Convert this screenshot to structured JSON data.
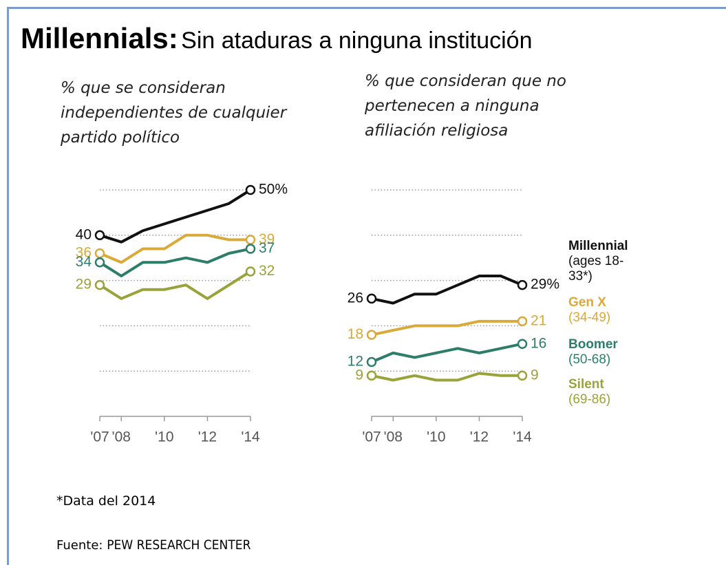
{
  "header": {
    "title": "Millennials:",
    "subtitle": "Sin ataduras a ninguna institución"
  },
  "chart_data": [
    {
      "type": "line",
      "subtitle": "% que se consideran independientes de cualquier partido político",
      "x": [
        2007,
        2008,
        2009,
        2010,
        2011,
        2012,
        2013,
        2014
      ],
      "xlim": [
        2007,
        2014
      ],
      "xticks": [
        {
          "value": 2007,
          "label": "'07"
        },
        {
          "value": 2008,
          "label": "'08"
        },
        {
          "value": 2010,
          "label": "'10"
        },
        {
          "value": 2012,
          "label": "'12"
        },
        {
          "value": 2014,
          "label": "'14"
        }
      ],
      "ylim": [
        0,
        50
      ],
      "yticks": [
        10,
        20,
        30,
        40,
        50
      ],
      "grid": true,
      "series": [
        {
          "name": "Millennial",
          "color": "#111111",
          "values": [
            40,
            38.5,
            41,
            42.5,
            44,
            45.5,
            47,
            50
          ],
          "value_labels": [
            "40",
            null,
            null,
            null,
            null,
            null,
            null,
            "50%"
          ]
        },
        {
          "name": "Gen X",
          "color": "#d9a93a",
          "values": [
            36,
            34,
            37,
            37,
            40,
            40,
            39,
            39
          ],
          "value_labels": [
            "36",
            null,
            null,
            null,
            null,
            null,
            null,
            "39"
          ]
        },
        {
          "name": "Boomer",
          "color": "#2e7d6b",
          "values": [
            34,
            31,
            34,
            34,
            35,
            34,
            36,
            37
          ],
          "value_labels": [
            "34",
            null,
            null,
            null,
            null,
            null,
            null,
            "37"
          ]
        },
        {
          "name": "Silent",
          "color": "#9aa23a",
          "values": [
            29,
            26,
            28,
            28,
            29,
            26,
            29,
            32
          ],
          "value_labels": [
            "29",
            null,
            null,
            null,
            null,
            null,
            null,
            "32"
          ]
        }
      ]
    },
    {
      "type": "line",
      "subtitle": "% que consideran que no pertenecen a ninguna afiliación religiosa",
      "x": [
        2007,
        2008,
        2009,
        2010,
        2011,
        2012,
        2013,
        2014
      ],
      "xlim": [
        2007,
        2014
      ],
      "xticks": [
        {
          "value": 2007,
          "label": "'07"
        },
        {
          "value": 2008,
          "label": "'08"
        },
        {
          "value": 2010,
          "label": "'10"
        },
        {
          "value": 2012,
          "label": "'12"
        },
        {
          "value": 2014,
          "label": "'14"
        }
      ],
      "ylim": [
        0,
        50
      ],
      "yticks": [
        10,
        20,
        30,
        40,
        50
      ],
      "grid": true,
      "series": [
        {
          "name": "Millennial",
          "age_range": "(ages 18-33*)",
          "color": "#111111",
          "values": [
            26,
            25,
            27,
            27,
            29,
            31,
            31,
            29
          ],
          "value_labels": [
            "26",
            null,
            null,
            null,
            null,
            null,
            null,
            "29%"
          ]
        },
        {
          "name": "Gen X",
          "age_range": "(34-49)",
          "color": "#d9a93a",
          "values": [
            18,
            19,
            20,
            20,
            20,
            21,
            21,
            21
          ],
          "value_labels": [
            "18",
            null,
            null,
            null,
            null,
            null,
            null,
            "21"
          ]
        },
        {
          "name": "Boomer",
          "age_range": "(50-68)",
          "color": "#2e7d6b",
          "values": [
            12,
            14,
            13,
            14,
            15,
            14,
            15,
            16
          ],
          "value_labels": [
            "12",
            null,
            null,
            null,
            null,
            null,
            null,
            "16"
          ]
        },
        {
          "name": "Silent",
          "age_range": "(69-86)",
          "color": "#9aa23a",
          "values": [
            9,
            8,
            9,
            8,
            8,
            9.5,
            9,
            9
          ],
          "value_labels": [
            "9",
            null,
            null,
            null,
            null,
            null,
            null,
            "9"
          ]
        }
      ]
    }
  ],
  "footer": {
    "note": "*Data del 2014",
    "source_label": "Fuente:",
    "source": "PEW RESEARCH CENTER"
  }
}
